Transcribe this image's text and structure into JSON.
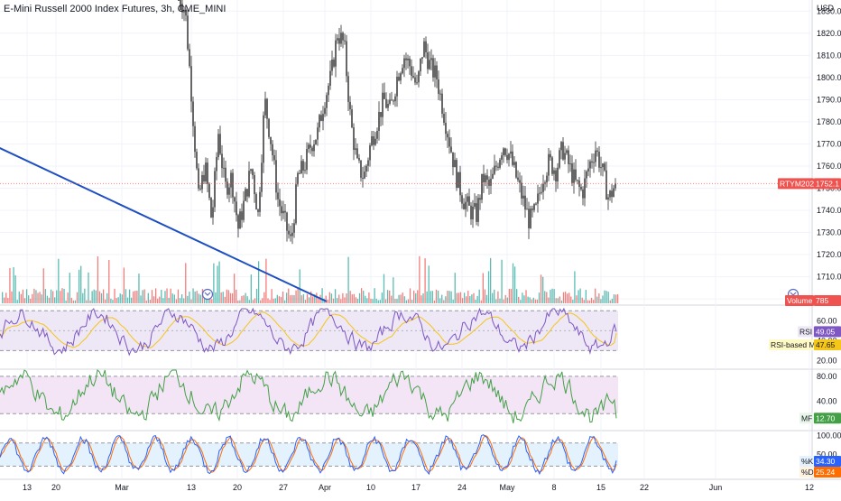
{
  "header": {
    "title": "E-Mini Russell 2000 Index Futures, 3h, CME_MINI"
  },
  "price_axis": {
    "currency": "USD",
    "ticks": [
      "1830.0",
      "1820.0",
      "1810.0",
      "1800.0",
      "1790.0",
      "1780.0",
      "1770.0",
      "1760.0",
      "1750.0",
      "1740.0",
      "1730.0",
      "1720.0",
      "1710.0",
      "1700.0"
    ]
  },
  "badges": {
    "symbol_label": "RTYM2023",
    "last_price": "1752.1",
    "volume_label": "Volume",
    "volume_value": "785",
    "rsi_label": "RSI",
    "rsi_value": "49.05",
    "rsi_ma_label": "RSI-based MA",
    "rsi_ma_value": "47.65",
    "mf_label": "MF",
    "mf_value": "12.70",
    "k_label": "%K",
    "k_value": "34.30",
    "d_label": "%D",
    "d_value": "25.24"
  },
  "rsi_axis": {
    "ticks": [
      "60.00",
      "40.00",
      "20.00"
    ]
  },
  "mf_axis": {
    "ticks": [
      "80.00",
      "40.00"
    ]
  },
  "stoch_axis": {
    "ticks": [
      "100.00",
      "50.00",
      "0.00"
    ]
  },
  "time_axis": {
    "labels": [
      "13",
      "20",
      "Mar",
      "13",
      "20",
      "27",
      "Apr",
      "10",
      "17",
      "24",
      "May",
      "8",
      "15",
      "22",
      "Jun",
      "12"
    ]
  },
  "colors": {
    "up": "#26a69a",
    "down": "#ef5350",
    "candle": "#555555",
    "trendline": "#1e4fc2",
    "rsi": "#7e57c2",
    "rsi_ma": "#f5c518",
    "mf": "#43a047",
    "k": "#2962ff",
    "d": "#ff6d00",
    "rsi_band": "#ede7f6",
    "mf_band": "#f3e5f5",
    "stoch_band": "#e3f2fd",
    "badge_red": "#ef5350"
  },
  "chart_data": {
    "type": "candlestick",
    "panes": [
      "price",
      "volume",
      "rsi",
      "money_flow",
      "stochastic"
    ],
    "price_ylim": [
      1698,
      1835
    ],
    "last_price": 1752.1,
    "price_path": [
      [
        0,
        1838
      ],
      [
        1,
        1830
      ],
      [
        2,
        1790
      ],
      [
        3,
        1745
      ],
      [
        4,
        1760
      ],
      [
        5,
        1735
      ],
      [
        6,
        1775
      ],
      [
        7,
        1750
      ],
      [
        8,
        1755
      ],
      [
        9,
        1732
      ],
      [
        10,
        1745
      ],
      [
        11,
        1760
      ],
      [
        12,
        1738
      ],
      [
        13,
        1790
      ],
      [
        14,
        1770
      ],
      [
        15,
        1745
      ],
      [
        16,
        1735
      ],
      [
        17,
        1725
      ],
      [
        18,
        1755
      ],
      [
        19,
        1760
      ],
      [
        20,
        1770
      ],
      [
        21,
        1775
      ],
      [
        22,
        1790
      ],
      [
        23,
        1800
      ],
      [
        24,
        1820
      ],
      [
        25,
        1815
      ],
      [
        26,
        1780
      ],
      [
        27,
        1760
      ],
      [
        28,
        1755
      ],
      [
        29,
        1770
      ],
      [
        30,
        1780
      ],
      [
        31,
        1790
      ],
      [
        32,
        1785
      ],
      [
        33,
        1800
      ],
      [
        34,
        1810
      ],
      [
        35,
        1805
      ],
      [
        36,
        1795
      ],
      [
        37,
        1815
      ],
      [
        38,
        1805
      ],
      [
        39,
        1800
      ],
      [
        40,
        1785
      ],
      [
        41,
        1770
      ],
      [
        42,
        1755
      ],
      [
        43,
        1745
      ],
      [
        44,
        1740
      ],
      [
        45,
        1738
      ],
      [
        46,
        1755
      ],
      [
        47,
        1750
      ],
      [
        48,
        1760
      ],
      [
        49,
        1770
      ],
      [
        50,
        1765
      ],
      [
        51,
        1755
      ],
      [
        52,
        1745
      ],
      [
        53,
        1735
      ],
      [
        54,
        1740
      ],
      [
        55,
        1755
      ],
      [
        56,
        1762
      ],
      [
        57,
        1758
      ],
      [
        58,
        1768
      ],
      [
        59,
        1760
      ],
      [
        60,
        1752
      ],
      [
        61,
        1748
      ],
      [
        62,
        1760
      ],
      [
        63,
        1768
      ],
      [
        64,
        1758
      ],
      [
        65,
        1745
      ],
      [
        66,
        1752
      ]
    ],
    "trendline": [
      [
        -10,
        1770
      ],
      [
        44,
        1698
      ]
    ],
    "rsi_ylim": [
      15,
      72
    ],
    "rsi_upper": 70,
    "rsi_lower": 30,
    "rsi_last": 49.05,
    "rsi_ma_last": 47.65,
    "mf_ylim": [
      0,
      90
    ],
    "mf_upper": 80,
    "mf_lower": 20,
    "mf_last": 12.7,
    "stoch_ylim": [
      -5,
      110
    ],
    "stoch_upper": 80,
    "stoch_lower": 20,
    "k_last": 34.3,
    "d_last": 25.24
  }
}
